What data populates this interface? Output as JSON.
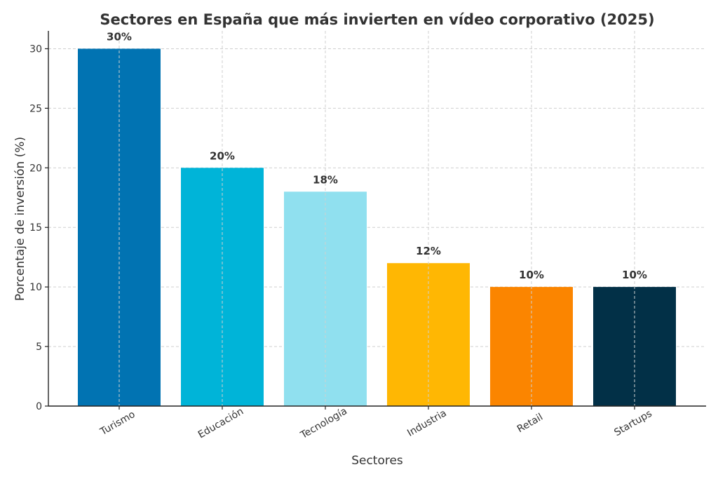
{
  "chart_data": {
    "type": "bar",
    "title": "Sectores en España que más invierten en vídeo corporativo (2025)",
    "xlabel": "Sectores",
    "ylabel": "Porcentaje de inversión (%)",
    "categories": [
      "Turismo",
      "Educación",
      "Tecnología",
      "Industria",
      "Retail",
      "Startups"
    ],
    "values": [
      30,
      20,
      18,
      12,
      10,
      10
    ],
    "data_labels": [
      "30%",
      "20%",
      "18%",
      "12%",
      "10%",
      "10%"
    ],
    "colors": [
      "#0173b2",
      "#00b4d8",
      "#90e0ef",
      "#ffb703",
      "#fb8500",
      "#023047"
    ],
    "ylim": [
      0,
      31.5
    ],
    "yticks": [
      0,
      5,
      10,
      15,
      20,
      25,
      30
    ],
    "grid": true
  }
}
